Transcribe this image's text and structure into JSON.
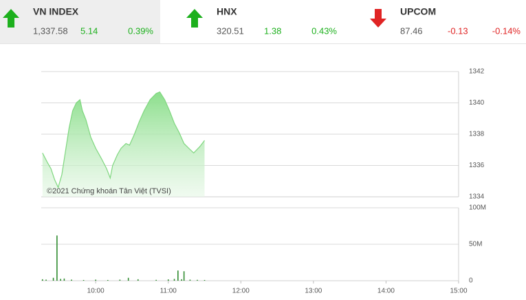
{
  "indices": [
    {
      "name": "VN INDEX",
      "value": "1,337.58",
      "change": "5.14",
      "percent": "0.39%",
      "color": "#1db01d"
    },
    {
      "name": "HNX",
      "value": "320.51",
      "change": "1.38",
      "percent": "0.43%",
      "color": "#1db01d"
    },
    {
      "name": "UPCOM",
      "value": "87.46",
      "change": "-0.13",
      "percent": "-0.14%",
      "color": "#e02424"
    }
  ],
  "chart_data": [
    {
      "type": "area",
      "annotation": "©2021 Chứng khoán Tân Việt (TVSI)",
      "color": "#7ed67e",
      "x": [
        556,
        560,
        563,
        566,
        569,
        572,
        575,
        578,
        581,
        584,
        587,
        589,
        592,
        596,
        600,
        605,
        609,
        612,
        614,
        618,
        621,
        625,
        628,
        632,
        636,
        640,
        645,
        650,
        653,
        657,
        661,
        665,
        669,
        673,
        677,
        681,
        686,
        690
      ],
      "values": [
        1336.8,
        1336.2,
        1335.8,
        1335.1,
        1334.6,
        1335.4,
        1336.9,
        1338.4,
        1339.5,
        1340.0,
        1340.2,
        1339.5,
        1338.9,
        1337.8,
        1337.1,
        1336.4,
        1335.8,
        1335.2,
        1336.0,
        1336.7,
        1337.1,
        1337.4,
        1337.3,
        1338.0,
        1338.8,
        1339.5,
        1340.2,
        1340.6,
        1340.7,
        1340.2,
        1339.5,
        1338.7,
        1338.1,
        1337.4,
        1337.1,
        1336.8,
        1337.2,
        1337.6
      ],
      "xlim": [
        555,
        900
      ],
      "ylim": [
        1334,
        1342
      ],
      "yticks": [
        1334,
        1336,
        1338,
        1340,
        1342
      ],
      "grid": true
    },
    {
      "type": "bar",
      "color": "#2e8b2e",
      "x": [
        556,
        559,
        565,
        568,
        571,
        574,
        580,
        590,
        600,
        610,
        620,
        627,
        635,
        650,
        660,
        665,
        668,
        671,
        673,
        678,
        684,
        690
      ],
      "values": [
        2000000,
        1500000,
        4000000,
        62000000,
        2500000,
        3000000,
        1500000,
        1000000,
        1500000,
        1000000,
        1500000,
        4000000,
        2000000,
        1200000,
        1800000,
        2500000,
        14000000,
        2000000,
        13000000,
        1500000,
        1200000,
        1000000
      ],
      "xlim": [
        555,
        900
      ],
      "ylim": [
        0,
        100000000
      ],
      "yticks": [
        0,
        {
          "value": 50000000,
          "label": "50M"
        },
        {
          "value": 100000000,
          "label": "100M"
        }
      ],
      "xticks": [
        {
          "value": 600,
          "label": "10:00"
        },
        {
          "value": 660,
          "label": "11:00"
        },
        {
          "value": 720,
          "label": "12:00"
        },
        {
          "value": 780,
          "label": "13:00"
        },
        {
          "value": 840,
          "label": "14:00"
        },
        {
          "value": 900,
          "label": "15:00"
        }
      ],
      "grid": true
    }
  ]
}
